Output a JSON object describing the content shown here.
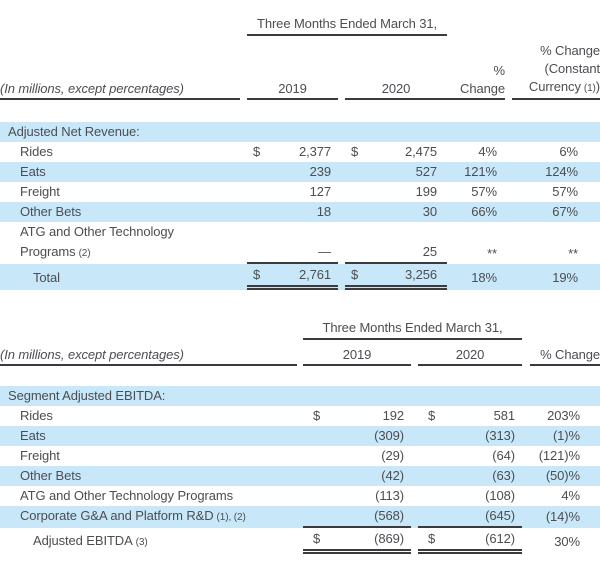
{
  "colors": {
    "row_blue": "#c8e8f9",
    "text": "#4d4d52",
    "rule": "#3a3a3f"
  },
  "table1": {
    "span_header": "Three Months Ended March 31,",
    "note_label": "(In millions, except percentages)",
    "col_2019": "2019",
    "col_2020": "2020",
    "col_change": "% Change",
    "cc": {
      "l1": "% Change",
      "l2": "(Constant",
      "l3_text": "Currency",
      "l3_note": "(1)",
      "l3_close": ")"
    },
    "section_header": "Adjusted Net Revenue:",
    "rows": [
      {
        "label": "Rides",
        "d1": "$",
        "v1": "2,377",
        "d2": "$",
        "v2": "2,475",
        "chg": "4%",
        "cc": "6%"
      },
      {
        "label": "Eats",
        "v1": "239",
        "v2": "527",
        "chg": "121%",
        "cc": "124%"
      },
      {
        "label": "Freight",
        "v1": "127",
        "v2": "199",
        "chg": "57%",
        "cc": "57%"
      },
      {
        "label": "Other Bets",
        "v1": "18",
        "v2": "30",
        "chg": "66%",
        "cc": "67%"
      },
      {
        "label": "ATG and Other Technology Programs",
        "note": "(2)",
        "v1": "—",
        "v2": "25",
        "chg": "**",
        "cc": "**"
      }
    ],
    "total": {
      "label": "Total",
      "d1": "$",
      "v1": "2,761",
      "d2": "$",
      "v2": "3,256",
      "chg": "18%",
      "cc": "19%"
    }
  },
  "table2": {
    "span_header": "Three Months Ended March 31,",
    "note_label": "(In millions, except percentages)",
    "col_2019": "2019",
    "col_2020": "2020",
    "col_change": "% Change",
    "section_header": "Segment Adjusted EBITDA:",
    "rows": [
      {
        "label": "Rides",
        "d1": "$",
        "v1": "192",
        "d2": "$",
        "v2": "581",
        "chg": "203%"
      },
      {
        "label": "Eats",
        "v1": "(309)",
        "v2": "(313)",
        "chg": "(1)%"
      },
      {
        "label": "Freight",
        "v1": "(29)",
        "v2": "(64)",
        "chg": "(121)%"
      },
      {
        "label": "Other Bets",
        "v1": "(42)",
        "v2": "(63)",
        "chg": "(50)%"
      },
      {
        "label": "ATG and Other Technology Programs",
        "v1": "(113)",
        "v2": "(108)",
        "chg": "4%"
      },
      {
        "label": "Corporate G&A and Platform R&D",
        "note": "(1), (2)",
        "v1": "(568)",
        "v2": "(645)",
        "chg": "(14)%"
      }
    ],
    "total": {
      "label": "Adjusted EBITDA",
      "note": "(3)",
      "d1": "$",
      "v1": "(869)",
      "d2": "$",
      "v2": "(612)",
      "chg": "30%"
    }
  }
}
